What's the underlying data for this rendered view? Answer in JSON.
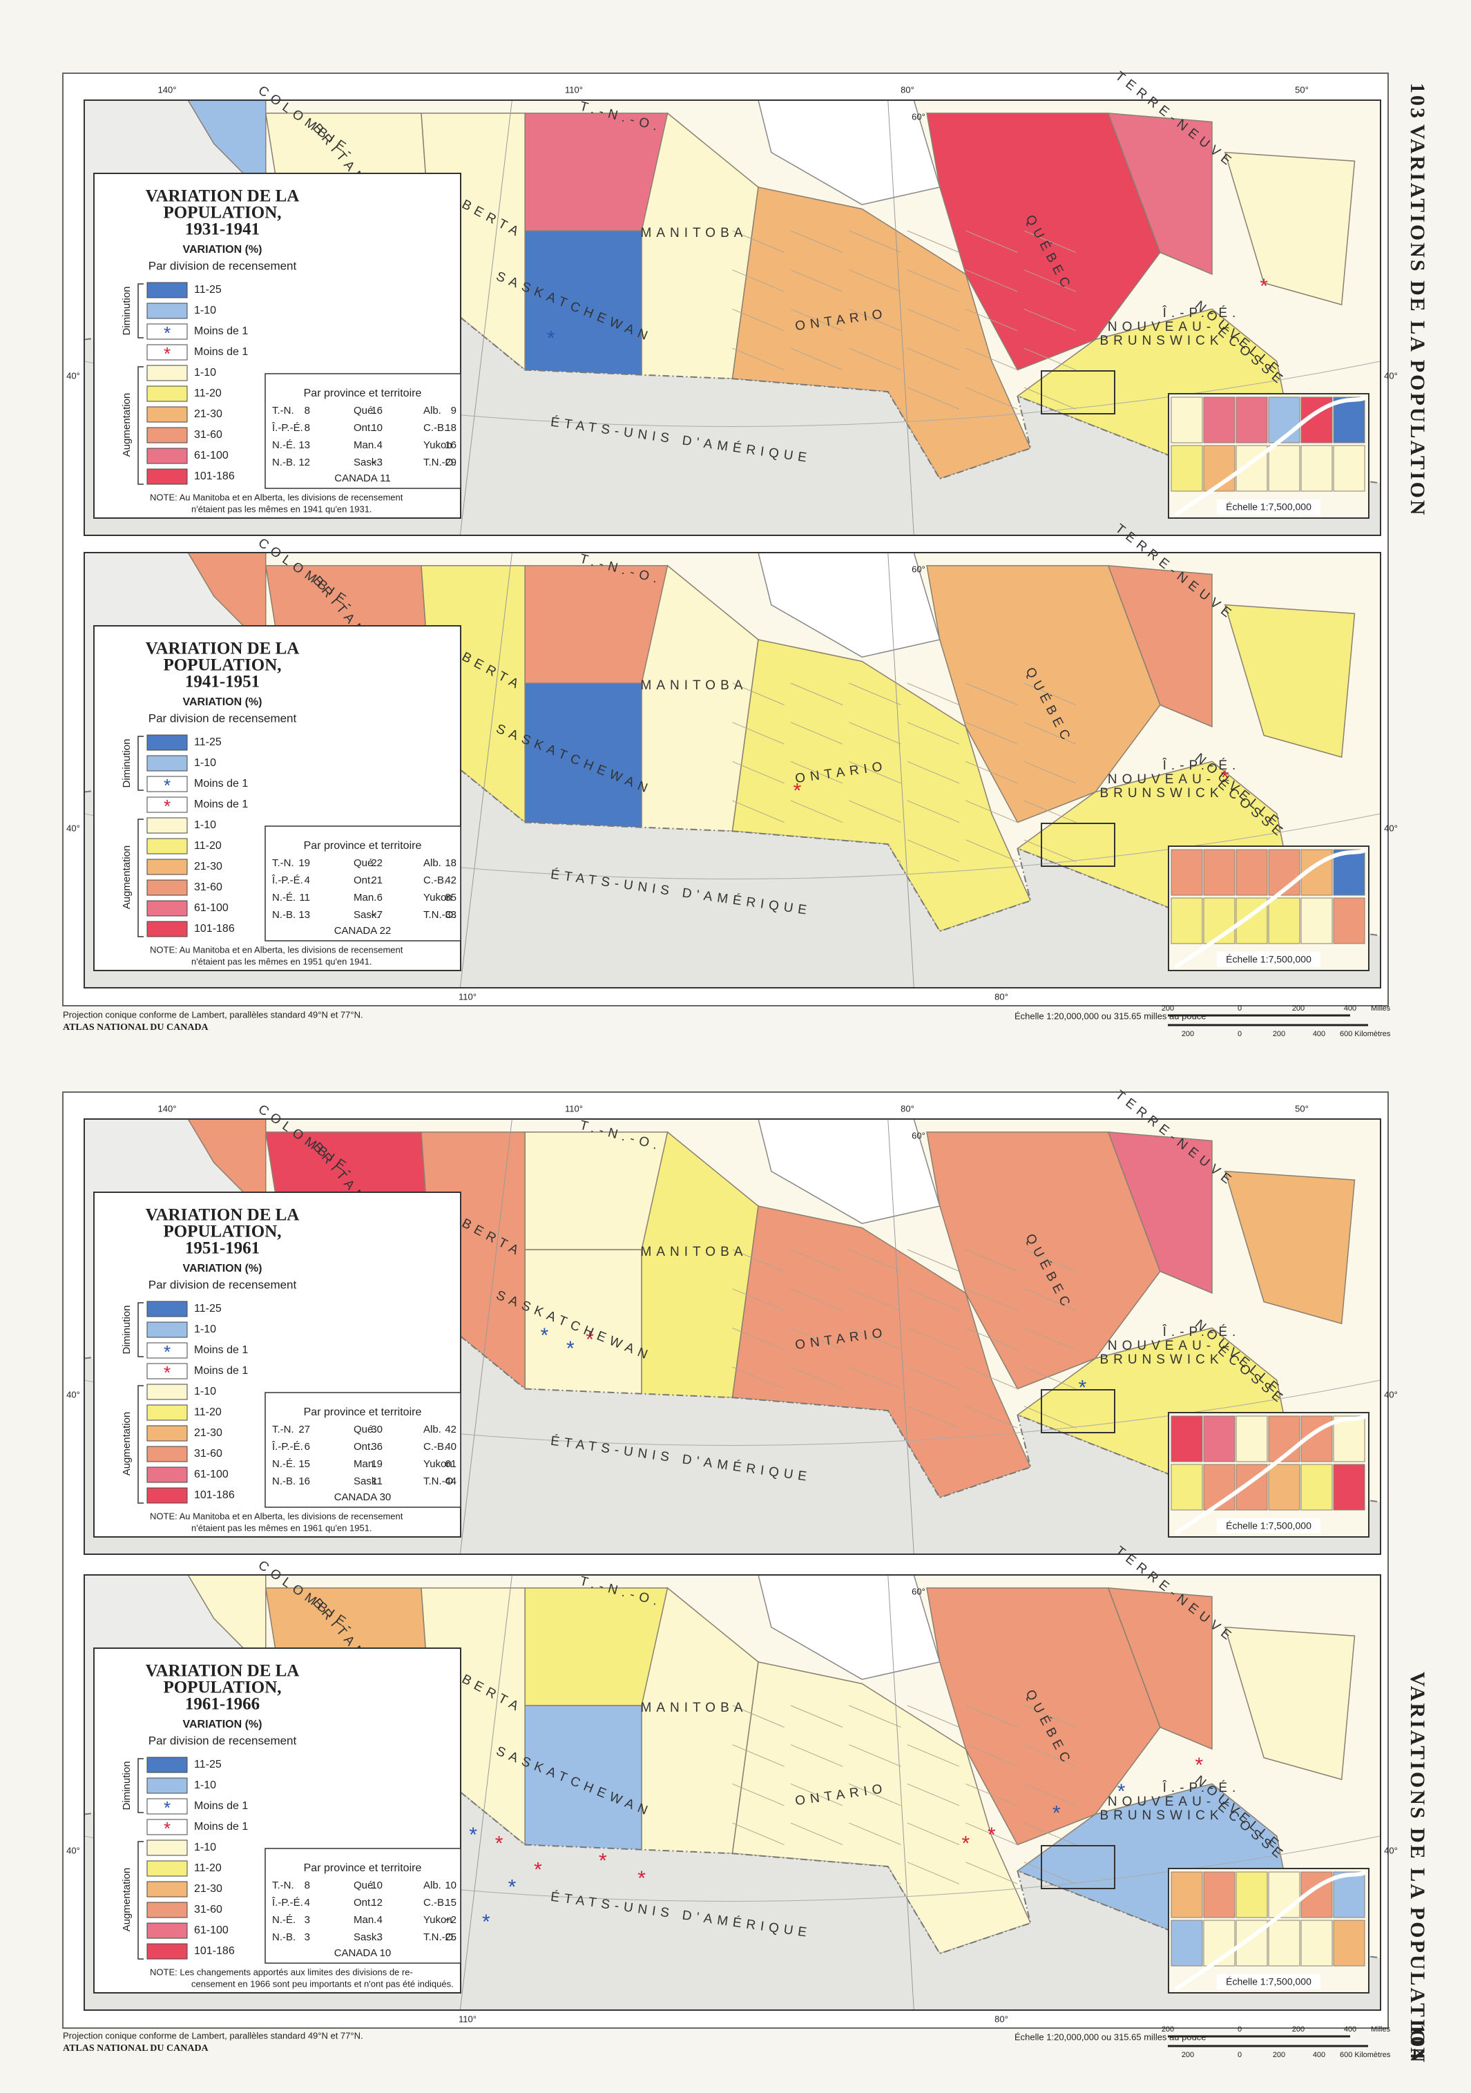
{
  "page": {
    "left_number": "103",
    "right_number": "104",
    "side_title": "VARIATIONS DE LA POPULATION"
  },
  "legend": {
    "title": [
      "VARIATION DE LA",
      "POPULATION,"
    ],
    "variation": "VARIATION (%)",
    "subtitle": "Par division de recensement",
    "decrease": "Diminution",
    "increase": "Augmentation",
    "items": [
      "11-25",
      "1-10",
      "Moins de 1",
      "Moins de 1",
      "1-10",
      "11-20",
      "21-30",
      "31-60",
      "61-100",
      "101-186"
    ],
    "star": "*",
    "stats_title": "Par province et territoire",
    "inset_scale": "Échelle 1:7,500,000"
  },
  "places": [
    "COLOMBIE-",
    "BRITANNIQUE",
    "ALBERTA",
    "SASKATCHEWAN",
    "MANITOBA",
    "T.-N.-O.",
    "ONTARIO",
    "QUÉBEC",
    "TERRE-NEUVE",
    "Î.-P.-É.",
    "NOUVEAU-",
    "BRUNSWICK",
    "NOUVELLE-",
    "ÉCOSSE",
    "ÉTATS-UNIS D'AMÉRIQUE"
  ],
  "degrees": {
    "top": [
      "140°",
      "110°",
      "80°",
      "50°"
    ],
    "bottom": [
      "110°",
      "80°"
    ],
    "lat60": "60°",
    "lat40": "40°"
  },
  "maps": [
    {
      "period": "1931-1941",
      "stats": [
        [
          [
            "T.-N.",
            "8"
          ],
          [
            "Qué.",
            "16"
          ],
          [
            "Alb.",
            "9"
          ]
        ],
        [
          [
            "Î.-P.-É.",
            "8"
          ],
          [
            "Ont.",
            "10"
          ],
          [
            "C.-B.",
            "18"
          ]
        ],
        [
          [
            "N.-É.",
            "13"
          ],
          [
            "Man.",
            "4"
          ],
          [
            "Yukon",
            "16"
          ]
        ],
        [
          [
            "N.-B.",
            "12"
          ],
          [
            "Sask.",
            "−3"
          ],
          [
            "T.N.-O.",
            "29"
          ]
        ]
      ],
      "canada": "CANADA 11",
      "note": [
        "NOTE:  Au Manitoba et en Alberta, les divisions de recensement",
        "n'étaient pas les mêmes en 1941 qu'en 1931."
      ]
    },
    {
      "period": "1941-1951",
      "stats": [
        [
          [
            "T.-N.",
            "19"
          ],
          [
            "Qué.",
            "22"
          ],
          [
            "Alb.",
            "18"
          ]
        ],
        [
          [
            "Î.-P.-É.",
            "4"
          ],
          [
            "Ont.",
            "21"
          ],
          [
            "C.-B.",
            "42"
          ]
        ],
        [
          [
            "N.-É.",
            "11"
          ],
          [
            "Man.",
            "6"
          ],
          [
            "Yukon",
            "85"
          ]
        ],
        [
          [
            "N.-B.",
            "13"
          ],
          [
            "Sask.",
            "−7"
          ],
          [
            "T.N.-O.",
            "33"
          ]
        ]
      ],
      "canada": "CANADA 22",
      "note": [
        "NOTE:  Au Manitoba et en Alberta, les divisions de recensement",
        "n'étaient pas les mêmes en 1951 qu'en 1941."
      ]
    },
    {
      "period": "1951-1961",
      "stats": [
        [
          [
            "T.-N.",
            "27"
          ],
          [
            "Qué.",
            "30"
          ],
          [
            "Alb.",
            "42"
          ]
        ],
        [
          [
            "Î.-P.-É.",
            "6"
          ],
          [
            "Ont.",
            "36"
          ],
          [
            "C.-B.",
            "40"
          ]
        ],
        [
          [
            "N.-É.",
            "15"
          ],
          [
            "Man.",
            "19"
          ],
          [
            "Yukon",
            "61"
          ]
        ],
        [
          [
            "N.-B.",
            "16"
          ],
          [
            "Sask.",
            "11"
          ],
          [
            "T.N.-O.",
            "44"
          ]
        ]
      ],
      "canada": "CANADA 30",
      "note": [
        "NOTE:  Au Manitoba et en Alberta, les divisions de recensement",
        "n'étaient pas les mêmes en 1961 qu'en 1951."
      ]
    },
    {
      "period": "1961-1966",
      "stats": [
        [
          [
            "T.-N.",
            "8"
          ],
          [
            "Qué.",
            "10"
          ],
          [
            "Alb.",
            "10"
          ]
        ],
        [
          [
            "Î.-P.-É.",
            "4"
          ],
          [
            "Ont.",
            "12"
          ],
          [
            "C.-B.",
            "15"
          ]
        ],
        [
          [
            "N.-É.",
            "3"
          ],
          [
            "Man.",
            "4"
          ],
          [
            "Yukon",
            "−2"
          ]
        ],
        [
          [
            "N.-B.",
            "3"
          ],
          [
            "Sask.",
            "3"
          ],
          [
            "T.N.-O.",
            "25"
          ]
        ]
      ],
      "canada": "CANADA 10",
      "note": [
        "NOTE:  Les changements apportés aux limites des divisions de re-",
        "censement en 1966 sont peu importants et n'ont pas été indiqués."
      ]
    }
  ],
  "footer": {
    "projection": "Projection conique conforme de Lambert, parallèles standard 49°N et 77°N.",
    "atlas": "ATLAS NATIONAL DU CANADA",
    "scale": "Échelle 1:20,000,000  ou 315.65 milles au pouce",
    "miles": [
      "200",
      "0",
      "200",
      "400",
      "Milles"
    ],
    "km": [
      "200",
      "0",
      "200",
      "400",
      "600 Kilomètres"
    ]
  }
}
